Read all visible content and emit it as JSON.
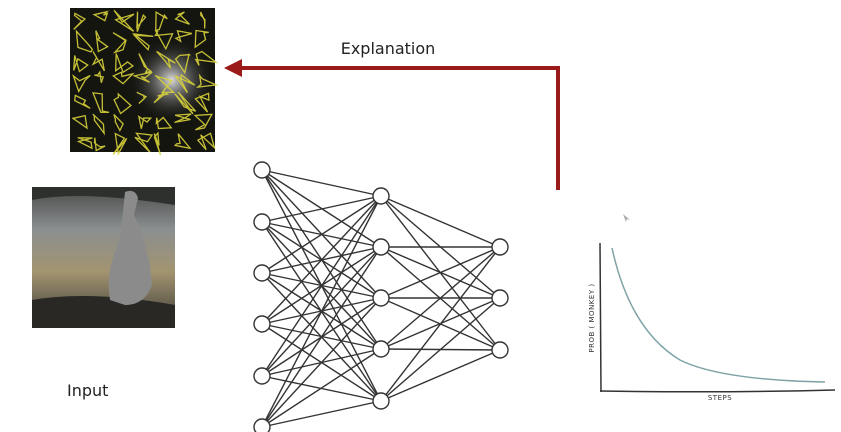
{
  "diagram": {
    "explanation_label": "Explanation",
    "input_label": "Input",
    "plot": {
      "y_label": "PROB ( MONKEY )",
      "x_label": "STEPS"
    }
  }
}
